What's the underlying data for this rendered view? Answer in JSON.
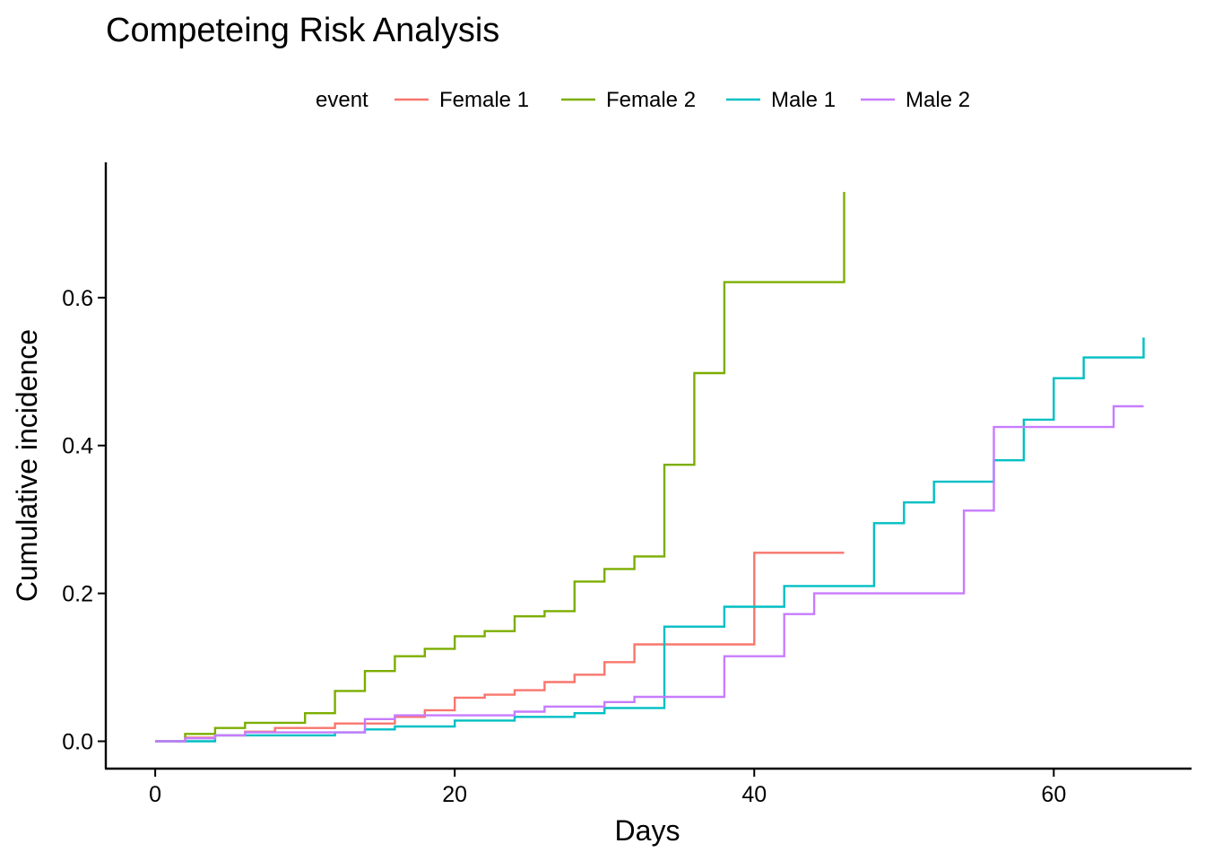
{
  "chart_data": {
    "type": "line",
    "step": true,
    "title": "Competeing Risk Analysis",
    "xlabel": "Days",
    "ylabel": "Cumulative incidence",
    "xlim": [
      -3.3,
      69.2
    ],
    "ylim": [
      -0.037,
      0.783
    ],
    "xticks": [
      0,
      20,
      40,
      60
    ],
    "yticks": [
      0.0,
      0.2,
      0.4,
      0.6
    ],
    "ytick_labels": [
      "0.0",
      "0.2",
      "0.4",
      "0.6"
    ],
    "grid": false,
    "legend": {
      "title": "event",
      "position": "top"
    },
    "series": [
      {
        "name": "Female 1",
        "color": "#F8766D",
        "x": [
          0,
          2,
          4,
          6,
          8,
          12,
          16,
          18,
          20,
          22,
          24,
          26,
          28,
          30,
          32,
          34,
          38,
          40,
          46
        ],
        "y": [
          0,
          0.005,
          0.008,
          0.013,
          0.018,
          0.024,
          0.033,
          0.042,
          0.059,
          0.063,
          0.069,
          0.08,
          0.09,
          0.107,
          0.131,
          0.131,
          0.131,
          0.255,
          0.255
        ]
      },
      {
        "name": "Female 2",
        "color": "#7CAE00",
        "x": [
          0,
          2,
          4,
          6,
          10,
          12,
          14,
          16,
          18,
          20,
          22,
          24,
          26,
          28,
          30,
          32,
          34,
          36,
          38,
          46,
          46
        ],
        "y": [
          0,
          0.01,
          0.018,
          0.025,
          0.038,
          0.068,
          0.095,
          0.115,
          0.125,
          0.142,
          0.149,
          0.169,
          0.176,
          0.216,
          0.233,
          0.25,
          0.374,
          0.498,
          0.621,
          0.621,
          0.743
        ]
      },
      {
        "name": "Male 1",
        "color": "#00BFC4",
        "x": [
          0,
          4,
          12,
          14,
          16,
          20,
          24,
          28,
          30,
          34,
          38,
          42,
          48,
          50,
          52,
          56,
          58,
          60,
          62,
          66,
          66
        ],
        "y": [
          0,
          0.008,
          0.012,
          0.016,
          0.02,
          0.028,
          0.033,
          0.038,
          0.045,
          0.155,
          0.182,
          0.21,
          0.295,
          0.323,
          0.351,
          0.38,
          0.435,
          0.491,
          0.519,
          0.519,
          0.546
        ]
      },
      {
        "name": "Male 2",
        "color": "#C77CFF",
        "x": [
          0,
          2,
          4,
          6,
          12,
          14,
          16,
          24,
          26,
          30,
          32,
          38,
          42,
          44,
          54,
          56,
          64,
          66
        ],
        "y": [
          0,
          0.004,
          0.008,
          0.012,
          0.012,
          0.03,
          0.035,
          0.04,
          0.047,
          0.053,
          0.06,
          0.115,
          0.172,
          0.2,
          0.312,
          0.425,
          0.453,
          0.453
        ]
      }
    ]
  }
}
